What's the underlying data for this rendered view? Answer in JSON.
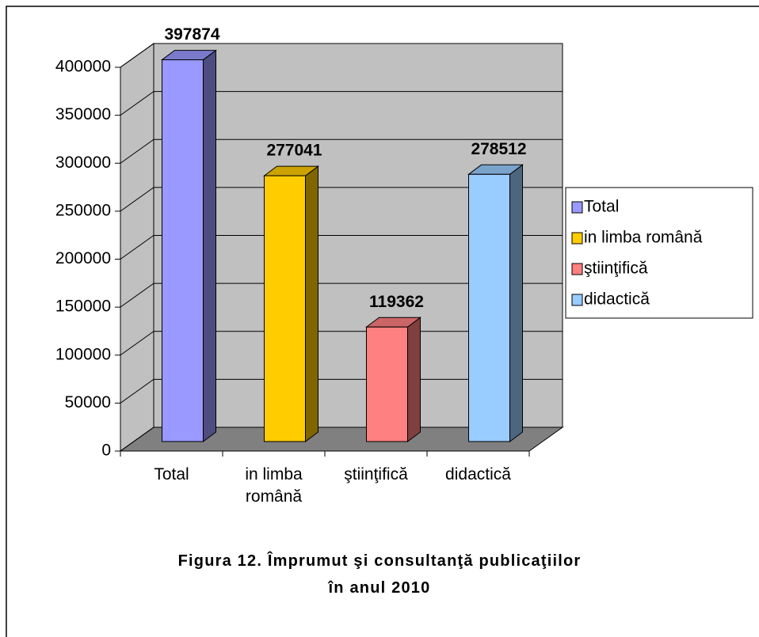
{
  "chart_data": {
    "type": "bar3d",
    "title": [
      "Figura 12. Împrumut şi consultanţă publicaţiilor",
      "în anul 2010"
    ],
    "categories": [
      "Total",
      "in limba română",
      "ştiinţifică",
      "didactică"
    ],
    "values": [
      397874,
      277041,
      119362,
      278512
    ],
    "colors": [
      "#9999ff",
      "#ffcc00",
      "#ff8080",
      "#99ccff"
    ],
    "ylim": [
      0,
      400000
    ],
    "yticks": [
      0,
      50000,
      100000,
      150000,
      200000,
      250000,
      300000,
      350000,
      400000
    ],
    "grid": true,
    "legend": "right"
  }
}
